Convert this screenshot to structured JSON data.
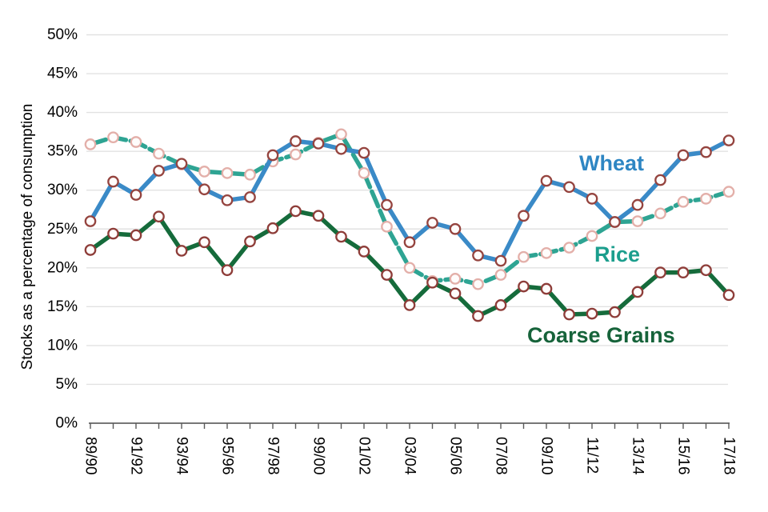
{
  "chart_data": {
    "type": "line",
    "title": "",
    "xlabel": "",
    "ylabel": "Stocks as a percentage of consumption",
    "ylim": [
      0,
      50
    ],
    "ytick_step": 5,
    "ytick_suffix": "%",
    "grid": "horizontal",
    "legend_position": "inline-labels-on-chart",
    "x_tick_label_every": 2,
    "categories": [
      "89/90",
      "90/91",
      "91/92",
      "92/93",
      "93/94",
      "94/95",
      "95/96",
      "96/97",
      "97/98",
      "98/99",
      "99/00",
      "00/01",
      "01/02",
      "02/03",
      "03/04",
      "04/05",
      "05/06",
      "06/07",
      "07/08",
      "08/09",
      "09/10",
      "10/11",
      "11/12",
      "12/13",
      "13/14",
      "14/15",
      "15/16",
      "16/17",
      "17/18"
    ],
    "series": [
      {
        "name": "Rice",
        "line_color": "#2EA493",
        "label_color": "#1B9E8D",
        "line_style": "dashed",
        "marker": "circle-open",
        "marker_ring_color": "#E3AFA9",
        "values": [
          35.9,
          36.8,
          36.2,
          34.7,
          33.3,
          32.4,
          32.2,
          32.0,
          33.7,
          34.6,
          36.1,
          37.2,
          32.2,
          25.3,
          20.0,
          18.3,
          18.6,
          17.9,
          19.1,
          21.4,
          21.9,
          22.6,
          24.1,
          25.9,
          26.0,
          27.0,
          28.5,
          28.9,
          29.8
        ]
      },
      {
        "name": "Coarse Grains",
        "line_color": "#156B3B",
        "label_color": "#16633A",
        "line_style": "solid",
        "marker": "circle-open",
        "marker_ring_color": "#8E3D39",
        "values": [
          22.3,
          24.4,
          24.2,
          26.6,
          22.2,
          23.3,
          19.7,
          23.4,
          25.1,
          27.3,
          26.7,
          24.0,
          22.1,
          19.1,
          15.2,
          18.1,
          16.7,
          13.8,
          15.2,
          17.6,
          17.3,
          14.0,
          14.1,
          14.3,
          16.9,
          19.4,
          19.4,
          19.7,
          16.5
        ]
      },
      {
        "name": "Wheat",
        "line_color": "#3A8AC7",
        "label_color": "#2E86C3",
        "line_style": "solid",
        "marker": "circle-open",
        "marker_ring_color": "#95443F",
        "values": [
          26.0,
          31.1,
          29.4,
          32.5,
          33.4,
          30.1,
          28.7,
          29.1,
          34.5,
          36.3,
          36.0,
          35.3,
          34.8,
          28.1,
          23.3,
          25.8,
          25.0,
          21.6,
          20.9,
          26.7,
          31.2,
          30.4,
          28.9,
          25.9,
          28.1,
          31.3,
          34.5,
          34.9,
          36.4
        ]
      }
    ],
    "colors": {
      "grid": "#E2E2E2",
      "axis": "#4A4A4A",
      "tick": "#5A5A5A",
      "text": "#000000",
      "marker_fill": "#FFFCFB",
      "background": "#FFFFFF"
    }
  }
}
